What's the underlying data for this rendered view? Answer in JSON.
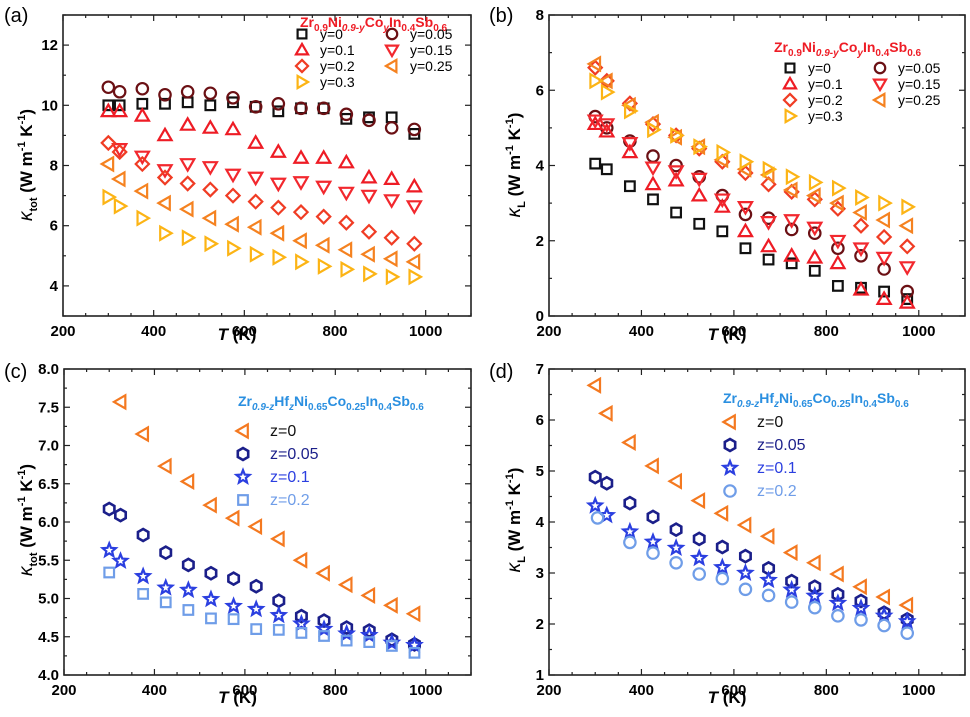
{
  "chart_data": [
    {
      "panel": "(a)",
      "type": "scatter",
      "xlabel": "T (K)",
      "ylabel": "κ_tot (W m⁻¹ K⁻¹)",
      "ylabel_main": "κ",
      "ylabel_sub": "tot",
      "ylabel_unit": "(W m",
      "xlim": [
        200,
        1100
      ],
      "ylim": [
        3,
        13
      ],
      "xticks": [
        200,
        400,
        600,
        800,
        1000
      ],
      "yticks": [
        4,
        6,
        8,
        10,
        12
      ],
      "grid": false,
      "legend_title": "Zr0.9Ni0.9-yCoyIn0.4Sb0.6",
      "legend_placement": "top-right",
      "series": [
        {
          "name": "y=0",
          "marker": "square",
          "color": "#111111",
          "x": [
            300,
            325,
            375,
            425,
            475,
            525,
            575,
            625,
            675,
            725,
            775,
            825,
            875,
            925,
            975
          ],
          "y": [
            10.0,
            10.0,
            10.05,
            10.05,
            10.1,
            10.0,
            10.1,
            9.95,
            9.8,
            9.9,
            9.9,
            9.55,
            9.6,
            9.6,
            9.05
          ]
        },
        {
          "name": "y=0.05",
          "marker": "circle",
          "color": "#6b1014",
          "x": [
            300,
            325,
            375,
            425,
            475,
            525,
            575,
            625,
            675,
            725,
            775,
            825,
            875,
            925,
            975
          ],
          "y": [
            10.6,
            10.45,
            10.55,
            10.35,
            10.45,
            10.4,
            10.25,
            9.95,
            10.05,
            9.9,
            9.9,
            9.7,
            9.5,
            9.25,
            9.2
          ]
        },
        {
          "name": "y=0.1",
          "marker": "triangle-up",
          "color": "#ee1c25",
          "x": [
            300,
            325,
            375,
            425,
            475,
            525,
            575,
            625,
            675,
            725,
            775,
            825,
            875,
            925,
            975
          ],
          "y": [
            9.8,
            9.8,
            9.65,
            9.0,
            9.35,
            9.25,
            9.2,
            8.75,
            8.45,
            8.25,
            8.25,
            8.1,
            7.6,
            7.55,
            7.3
          ]
        },
        {
          "name": "y=0.15",
          "marker": "triangle-down",
          "color": "#f2282e",
          "x": [
            325,
            375,
            425,
            475,
            525,
            575,
            625,
            675,
            725,
            775,
            825,
            875,
            925,
            975
          ],
          "y": [
            8.55,
            8.3,
            7.85,
            8.05,
            7.95,
            7.7,
            7.6,
            7.4,
            7.45,
            7.3,
            7.1,
            7.0,
            6.85,
            6.65
          ]
        },
        {
          "name": "y=0.2",
          "marker": "diamond",
          "color": "#f03c24",
          "x": [
            300,
            325,
            375,
            425,
            475,
            525,
            575,
            625,
            675,
            725,
            775,
            825,
            875,
            925,
            975
          ],
          "y": [
            8.75,
            8.45,
            8.05,
            7.6,
            7.4,
            7.2,
            7.0,
            6.8,
            6.6,
            6.45,
            6.3,
            6.1,
            5.8,
            5.6,
            5.4
          ]
        },
        {
          "name": "y=0.25",
          "marker": "triangle-left",
          "color": "#f58220",
          "x": [
            300,
            325,
            375,
            425,
            475,
            525,
            575,
            625,
            675,
            725,
            775,
            825,
            875,
            925,
            975
          ],
          "y": [
            8.05,
            7.55,
            7.15,
            6.75,
            6.55,
            6.25,
            6.05,
            5.95,
            5.75,
            5.5,
            5.35,
            5.2,
            5.05,
            4.9,
            4.8
          ]
        },
        {
          "name": "y=0.3",
          "marker": "triangle-right",
          "color": "#fcb415",
          "x": [
            300,
            325,
            375,
            425,
            475,
            525,
            575,
            625,
            675,
            725,
            775,
            825,
            875,
            925,
            975
          ],
          "y": [
            6.95,
            6.65,
            6.25,
            5.75,
            5.6,
            5.4,
            5.25,
            5.05,
            4.95,
            4.8,
            4.65,
            4.55,
            4.4,
            4.3,
            4.3
          ]
        }
      ]
    },
    {
      "panel": "(b)",
      "type": "scatter",
      "xlabel": "T (K)",
      "ylabel": "κ_L (W m⁻¹ K⁻¹)",
      "ylabel_main": "κ",
      "ylabel_sub": "L",
      "ylabel_unit": "(W m",
      "xlim": [
        200,
        1100
      ],
      "ylim": [
        0,
        8
      ],
      "xticks": [
        200,
        400,
        600,
        800,
        1000
      ],
      "yticks": [
        0,
        2,
        4,
        6,
        8
      ],
      "grid": false,
      "legend_title": "Zr0.9Ni0.9-yCoyIn0.4Sb0.6",
      "legend_placement": "top-right",
      "series": [
        {
          "name": "y=0",
          "marker": "square",
          "color": "#111111",
          "x": [
            300,
            325,
            375,
            425,
            475,
            525,
            575,
            625,
            675,
            725,
            775,
            825,
            875,
            925,
            975
          ],
          "y": [
            4.05,
            3.9,
            3.45,
            3.1,
            2.75,
            2.45,
            2.25,
            1.8,
            1.5,
            1.4,
            1.2,
            0.8,
            0.75,
            0.65,
            0.45
          ]
        },
        {
          "name": "y=0.05",
          "marker": "circle",
          "color": "#6b1014",
          "x": [
            300,
            325,
            375,
            425,
            475,
            525,
            575,
            625,
            675,
            725,
            775,
            825,
            875,
            925,
            975
          ],
          "y": [
            5.3,
            5.0,
            4.65,
            4.25,
            4.0,
            3.7,
            3.2,
            2.7,
            2.6,
            2.3,
            2.2,
            1.8,
            1.6,
            1.25,
            0.65
          ]
        },
        {
          "name": "y=0.1",
          "marker": "triangle-up",
          "color": "#ee1c25",
          "x": [
            300,
            325,
            375,
            425,
            475,
            525,
            575,
            625,
            675,
            725,
            775,
            825,
            875,
            925,
            975
          ],
          "y": [
            5.1,
            4.9,
            4.35,
            3.5,
            3.6,
            3.2,
            2.9,
            2.25,
            1.85,
            1.6,
            1.55,
            1.4,
            0.7,
            0.45,
            0.35
          ]
        },
        {
          "name": "y=0.15",
          "marker": "triangle-down",
          "color": "#f2282e",
          "x": [
            300,
            325,
            375,
            425,
            475,
            525,
            575,
            625,
            675,
            725,
            775,
            825,
            875,
            925,
            975
          ],
          "y": [
            5.2,
            5.1,
            4.6,
            3.95,
            3.85,
            3.65,
            3.1,
            2.9,
            2.5,
            2.55,
            2.35,
            2.0,
            1.8,
            1.55,
            1.3
          ]
        },
        {
          "name": "y=0.2",
          "marker": "diamond",
          "color": "#f03c24",
          "x": [
            300,
            325,
            375,
            425,
            475,
            525,
            575,
            625,
            675,
            725,
            775,
            825,
            875,
            925,
            975
          ],
          "y": [
            6.6,
            6.25,
            5.65,
            5.1,
            4.8,
            4.45,
            4.1,
            3.8,
            3.5,
            3.3,
            3.1,
            2.85,
            2.4,
            2.1,
            1.85
          ]
        },
        {
          "name": "y=0.25",
          "marker": "triangle-left",
          "color": "#f58220",
          "x": [
            300,
            325,
            375,
            425,
            475,
            525,
            575,
            625,
            675,
            725,
            775,
            825,
            875,
            925,
            975
          ],
          "y": [
            6.7,
            6.25,
            5.6,
            5.15,
            4.75,
            4.5,
            4.15,
            3.9,
            3.75,
            3.35,
            3.2,
            3.0,
            2.75,
            2.55,
            2.4
          ]
        },
        {
          "name": "y=0.3",
          "marker": "triangle-right",
          "color": "#fcb415",
          "x": [
            300,
            325,
            375,
            425,
            475,
            525,
            575,
            625,
            675,
            725,
            775,
            825,
            875,
            925,
            975
          ],
          "y": [
            6.25,
            5.95,
            5.45,
            4.95,
            4.8,
            4.5,
            4.35,
            4.1,
            3.9,
            3.7,
            3.55,
            3.4,
            3.15,
            3.0,
            2.9
          ]
        }
      ]
    },
    {
      "panel": "(c)",
      "type": "scatter",
      "xlabel": "T (K)",
      "ylabel": "κ_tot (W m⁻¹ K⁻¹)",
      "ylabel_main": "κ",
      "ylabel_sub": "tot",
      "ylabel_unit": "(W m",
      "xlim": [
        200,
        1100
      ],
      "ylim": [
        4.0,
        8.0
      ],
      "xticks": [
        200,
        400,
        600,
        800,
        1000
      ],
      "yticks": [
        4.0,
        4.5,
        5.0,
        5.5,
        6.0,
        6.5,
        7.0,
        7.5,
        8.0
      ],
      "ytick_labels": [
        "4.0",
        "4.5",
        "5.0",
        "5.5",
        "6.0",
        "6.5",
        "7.0",
        "7.5",
        "8.0"
      ],
      "grid": false,
      "legend_title": "Zr0.9-zHfzNi0.65Co0.25In0.4Sb0.6",
      "legend_placement": "top-right",
      "series": [
        {
          "name": "z=0",
          "marker": "triangle-left",
          "color": "#f47920",
          "text_color": "#111111",
          "x": [
            325,
            375,
            425,
            475,
            525,
            575,
            625,
            675,
            725,
            775,
            825,
            875,
            925,
            975
          ],
          "y": [
            7.57,
            7.15,
            6.73,
            6.53,
            6.22,
            6.05,
            5.94,
            5.78,
            5.5,
            5.33,
            5.18,
            5.04,
            4.91,
            4.8
          ]
        },
        {
          "name": "z=0.05",
          "marker": "hexagon",
          "color": "#1b1f8a",
          "text_color": "#1b1f8a",
          "x": [
            300,
            325,
            375,
            425,
            475,
            525,
            575,
            625,
            675,
            725,
            775,
            825,
            875,
            925,
            975
          ],
          "y": [
            6.17,
            6.09,
            5.83,
            5.6,
            5.44,
            5.33,
            5.26,
            5.16,
            4.97,
            4.77,
            4.71,
            4.62,
            4.58,
            4.46,
            4.4
          ]
        },
        {
          "name": "z=0.1",
          "marker": "star",
          "color": "#2b3fe0",
          "text_color": "#2b3fe0",
          "x": [
            300,
            325,
            375,
            425,
            475,
            525,
            575,
            625,
            675,
            725,
            775,
            825,
            875,
            925,
            975
          ],
          "y": [
            5.63,
            5.49,
            5.29,
            5.14,
            5.11,
            4.99,
            4.9,
            4.86,
            4.78,
            4.67,
            4.6,
            4.54,
            4.52,
            4.42,
            4.39
          ]
        },
        {
          "name": "z=0.2",
          "marker": "square",
          "color": "#6f9de8",
          "text_color": "#6f9de8",
          "x": [
            300,
            375,
            425,
            475,
            525,
            575,
            625,
            675,
            725,
            775,
            825,
            875,
            925,
            975
          ],
          "y": [
            5.34,
            5.06,
            4.95,
            4.85,
            4.74,
            4.73,
            4.6,
            4.59,
            4.55,
            4.51,
            4.45,
            4.43,
            4.38,
            4.29
          ]
        }
      ]
    },
    {
      "panel": "(d)",
      "type": "scatter",
      "xlabel": "T (K)",
      "ylabel": "κ_L (W m⁻¹ K⁻¹)",
      "ylabel_main": "κ",
      "ylabel_sub": "L",
      "ylabel_unit": "(W m",
      "xlim": [
        200,
        1100
      ],
      "ylim": [
        1,
        7
      ],
      "xticks": [
        200,
        400,
        600,
        800,
        1000
      ],
      "yticks": [
        1,
        2,
        3,
        4,
        5,
        6,
        7
      ],
      "grid": false,
      "legend_title": "Zr0.9-zHfzNi0.65Co0.25In0.4Sb0.6",
      "legend_placement": "top-right",
      "series": [
        {
          "name": "z=0",
          "marker": "triangle-left",
          "color": "#f47920",
          "text_color": "#111111",
          "x": [
            300,
            325,
            375,
            425,
            475,
            525,
            575,
            625,
            675,
            725,
            775,
            825,
            875,
            925,
            975
          ],
          "y": [
            6.68,
            6.13,
            5.56,
            5.1,
            4.8,
            4.42,
            4.17,
            3.94,
            3.72,
            3.4,
            3.2,
            2.98,
            2.73,
            2.53,
            2.37
          ]
        },
        {
          "name": "z=0.05",
          "marker": "hexagon",
          "color": "#1b1f8a",
          "text_color": "#1b1f8a",
          "x": [
            300,
            325,
            375,
            425,
            475,
            525,
            575,
            625,
            675,
            725,
            775,
            825,
            875,
            925,
            975
          ],
          "y": [
            4.88,
            4.76,
            4.37,
            4.1,
            3.85,
            3.67,
            3.51,
            3.33,
            3.09,
            2.84,
            2.73,
            2.58,
            2.45,
            2.22,
            2.09
          ]
        },
        {
          "name": "z=0.1",
          "marker": "star",
          "color": "#2b3fe0",
          "text_color": "#2b3fe0",
          "x": [
            300,
            325,
            375,
            425,
            475,
            525,
            575,
            625,
            675,
            725,
            775,
            825,
            875,
            925,
            975
          ],
          "y": [
            4.32,
            4.13,
            3.81,
            3.61,
            3.49,
            3.29,
            3.11,
            3.0,
            2.86,
            2.67,
            2.55,
            2.41,
            2.31,
            2.16,
            2.05
          ]
        },
        {
          "name": "z=0.2",
          "marker": "circle",
          "color": "#6f9de8",
          "text_color": "#6f9de8",
          "x": [
            305,
            375,
            425,
            475,
            525,
            575,
            625,
            675,
            725,
            775,
            825,
            875,
            925,
            975
          ],
          "y": [
            4.08,
            3.6,
            3.39,
            3.2,
            2.98,
            2.89,
            2.68,
            2.56,
            2.43,
            2.32,
            2.16,
            2.08,
            1.97,
            1.82
          ]
        }
      ]
    }
  ],
  "formula_ab": {
    "parts": [
      [
        "Zr",
        ""
      ],
      [
        "0.9",
        "sub"
      ],
      [
        "Ni",
        ""
      ],
      [
        "0.9-y",
        "sub-i"
      ],
      [
        "Co",
        ""
      ],
      [
        "y",
        "sub-i"
      ],
      [
        "In",
        ""
      ],
      [
        "0.4",
        "sub"
      ],
      [
        "Sb",
        ""
      ],
      [
        "0.6",
        "sub"
      ]
    ],
    "color": "#ee1c25"
  },
  "formula_cd": {
    "parts": [
      [
        "Zr",
        ""
      ],
      [
        "0.9-z",
        "sub-i"
      ],
      [
        "Hf",
        ""
      ],
      [
        "z",
        "sub-i"
      ],
      [
        "Ni",
        ""
      ],
      [
        "0.65",
        "sub"
      ],
      [
        "Co",
        ""
      ],
      [
        "0.25",
        "sub"
      ],
      [
        "In",
        ""
      ],
      [
        "0.4",
        "sub"
      ],
      [
        "Sb",
        ""
      ],
      [
        "0.6",
        "sub"
      ]
    ],
    "color": "#2a8fe0"
  },
  "axis_unit_suffix": {
    "m_sup": "-1",
    "K": " K",
    "K_sup": "-1",
    "close": ")"
  },
  "xlabel_parts": {
    "T": "T",
    "unit": " (K)"
  }
}
